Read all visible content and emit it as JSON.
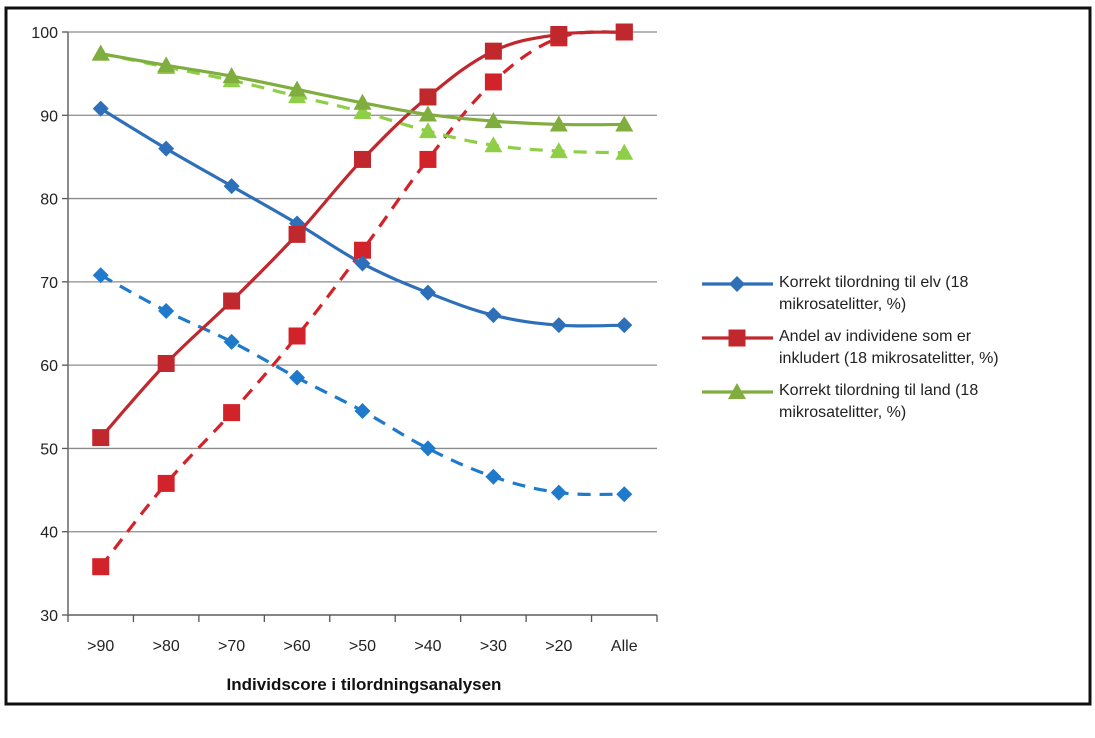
{
  "chart_data": {
    "type": "line",
    "xlabel": "Individscore i tilordningsanalysen",
    "ylabel": "",
    "title": "",
    "categories": [
      ">90",
      ">80",
      ">70",
      ">60",
      ">50",
      ">40",
      ">30",
      ">20",
      "Alle"
    ],
    "ylim": [
      30,
      100
    ],
    "yticks": [
      30,
      40,
      50,
      60,
      70,
      80,
      90,
      100
    ],
    "grid": "horizontal",
    "legend_position": "right",
    "series": [
      {
        "name": "Korrekt tilordning til elv (18 mikrosatelitter, %)",
        "legend_lines": [
          "Korrekt tilordning til elv (18",
          "mikrosatelitter, %)"
        ],
        "color": "#2e6fba",
        "marker": "diamond",
        "dash": false,
        "values": [
          90.8,
          86,
          81.5,
          77,
          72.2,
          68.7,
          66,
          64.8,
          64.8
        ]
      },
      {
        "name": "Andel av individene som er inkludert (18 mikrosatelitter, %)",
        "legend_lines": [
          "Andel av individene som er",
          "inkludert (18 mikrosatelitter, %)"
        ],
        "color": "#c0282d",
        "marker": "square",
        "dash": false,
        "values": [
          51.3,
          60.2,
          67.7,
          75.7,
          84.7,
          92.2,
          97.7,
          99.7,
          100
        ]
      },
      {
        "name": "Korrekt tilordning til land (18 mikrosatelitter, %)",
        "legend_lines": [
          "Korrekt tilordning til land (18",
          "mikrosatelitter, %)"
        ],
        "color": "#7fae3e",
        "marker": "triangle",
        "dash": false,
        "values": [
          97.4,
          96,
          94.7,
          93.1,
          91.5,
          90.1,
          89.3,
          88.9,
          88.9
        ]
      },
      {
        "name": "",
        "color": "#1f7acc",
        "marker": "diamond",
        "dash": true,
        "values": [
          70.8,
          66.5,
          62.8,
          58.5,
          54.5,
          50,
          46.6,
          44.7,
          44.5
        ]
      },
      {
        "name": "",
        "color": "#d3232a",
        "marker": "square",
        "dash": true,
        "values": [
          35.8,
          45.8,
          54.3,
          63.5,
          73.8,
          84.7,
          94,
          99.3,
          100
        ]
      },
      {
        "name": "",
        "color": "#8fcf48",
        "marker": "triangle",
        "dash": true,
        "values": [
          97.4,
          95.8,
          94.2,
          92.3,
          90.4,
          88.1,
          86.4,
          85.7,
          85.5
        ]
      }
    ]
  }
}
